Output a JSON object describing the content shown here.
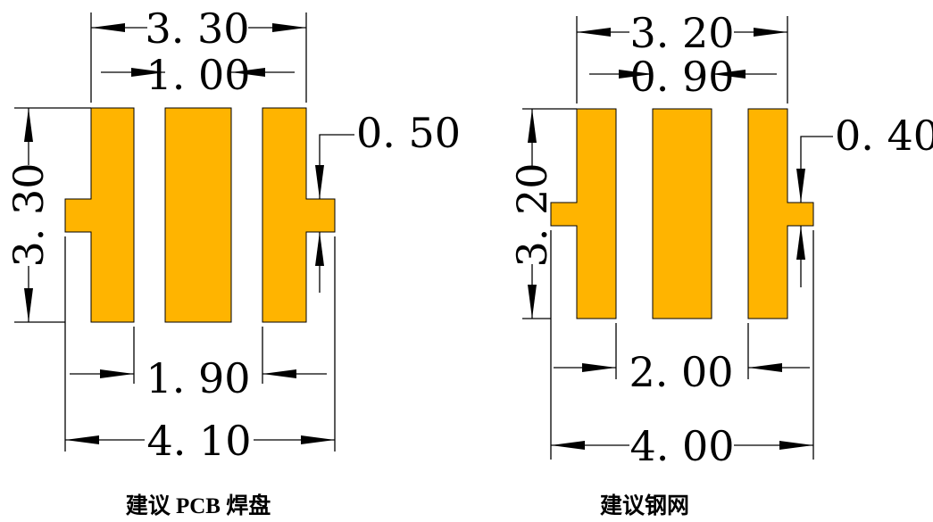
{
  "colors": {
    "pad_fill": "#FFB400",
    "line": "#000000"
  },
  "left_footprint": {
    "caption": "建议 PCB 焊盘",
    "width_top": "3. 30",
    "gap_top": "1. 00",
    "tab_width": "0. 50",
    "height": "3. 30",
    "inner_span": "1. 90",
    "overall_width": "4. 10"
  },
  "right_footprint": {
    "caption": "建议钢网",
    "width_top": "3. 20",
    "gap_top": "0. 90",
    "tab_width": "0. 40",
    "height": "3. 20",
    "inner_span": "2. 00",
    "overall_width": "4. 00"
  }
}
